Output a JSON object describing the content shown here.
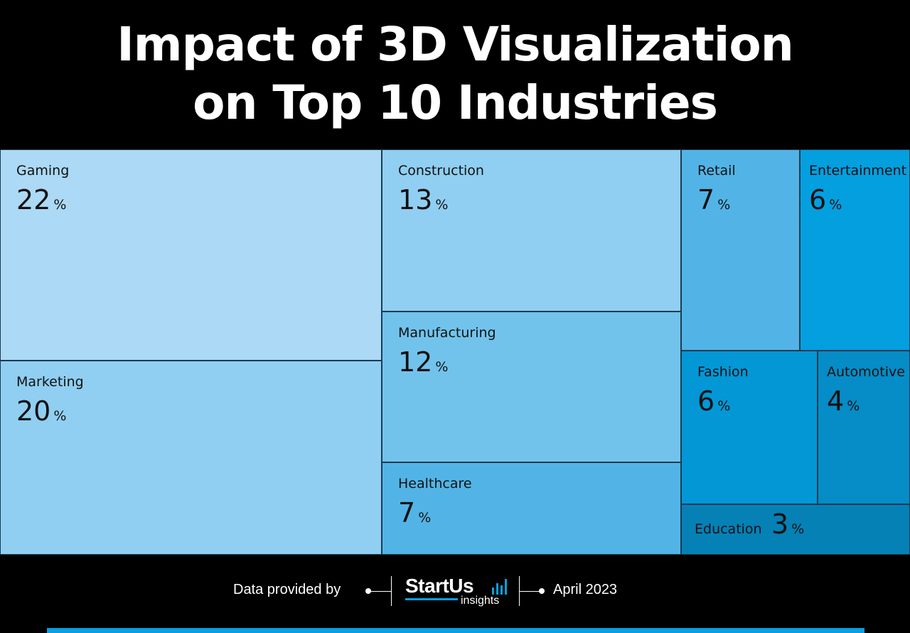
{
  "title": {
    "line1": "Impact of 3D Visualization",
    "line2": "on Top 10 Industries"
  },
  "chart_data": {
    "type": "treemap",
    "unit": "%",
    "categories": [
      "Gaming",
      "Marketing",
      "Construction",
      "Manufacturing",
      "Healthcare",
      "Retail",
      "Entertainment",
      "Fashion",
      "Automotive",
      "Education"
    ],
    "values": [
      22,
      20,
      13,
      12,
      7,
      7,
      6,
      6,
      4,
      3
    ],
    "colors": [
      "#acd9f5",
      "#90cff1",
      "#90cff1",
      "#72c3ec",
      "#52b4e6",
      "#52b4e6",
      "#049fdf",
      "#0397d6",
      "#068cc6",
      "#0581b6"
    ]
  },
  "footer": {
    "provided_label": "Data provided by",
    "logo_brand": "StartUs",
    "logo_sub": "insights",
    "date": "April 2023"
  },
  "icons": {
    "logo_bars": "bar-chart-icon"
  }
}
